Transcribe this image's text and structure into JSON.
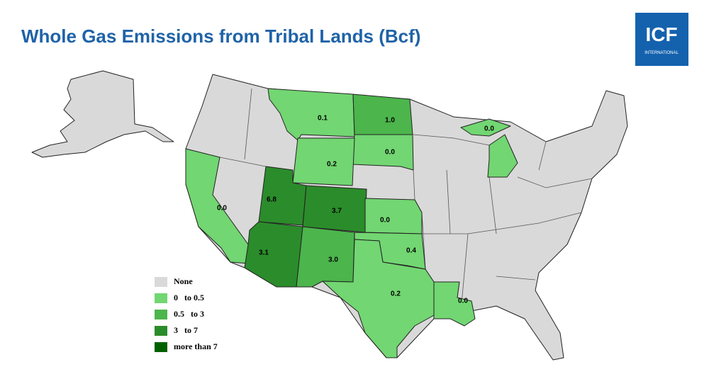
{
  "title": "Whole Gas Emissions from Tribal Lands (Bcf)",
  "logo": {
    "name": "ICF",
    "sub": "INTERNATIONAL"
  },
  "legend": [
    {
      "label": "None",
      "color": "#d9d9d9"
    },
    {
      "label": "0   to 0.5",
      "color": "#72d672"
    },
    {
      "label": "0.5   to 3",
      "color": "#4cb54c"
    },
    {
      "label": "3   to 7",
      "color": "#2b8c2b"
    },
    {
      "label": "more than 7",
      "color": "#006000"
    }
  ],
  "regions": [
    {
      "name": "montana",
      "label": "0.1",
      "color": "#72d672"
    },
    {
      "name": "north-dakota",
      "label": "1.0",
      "color": "#4cb54c"
    },
    {
      "name": "south-dakota",
      "label": "0.0",
      "color": "#72d672"
    },
    {
      "name": "wyoming",
      "label": "0.2",
      "color": "#72d672"
    },
    {
      "name": "utah",
      "label": "6.8",
      "color": "#2b8c2b"
    },
    {
      "name": "colorado",
      "label": "3.7",
      "color": "#2b8c2b"
    },
    {
      "name": "california",
      "label": "0.0",
      "color": "#72d672"
    },
    {
      "name": "kansas",
      "label": "0.0",
      "color": "#72d672"
    },
    {
      "name": "oklahoma",
      "label": "0.4",
      "color": "#72d672"
    },
    {
      "name": "arizona",
      "label": "3.1",
      "color": "#2b8c2b"
    },
    {
      "name": "new-mexico",
      "label": "3.0",
      "color": "#4cb54c"
    },
    {
      "name": "texas",
      "label": "0.2",
      "color": "#72d672"
    },
    {
      "name": "louisiana",
      "label": "0.0",
      "color": "#72d672"
    },
    {
      "name": "michigan",
      "label": "0.0",
      "color": "#72d672"
    }
  ]
}
